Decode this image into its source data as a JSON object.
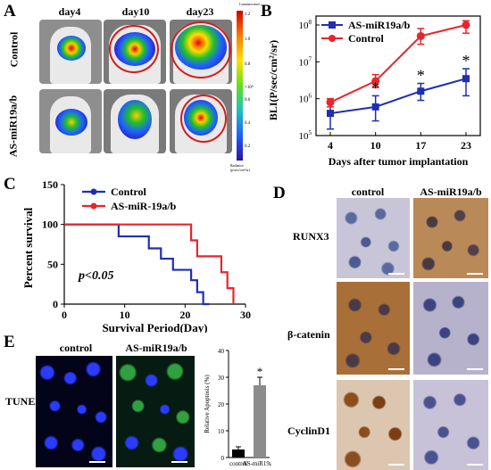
{
  "panels": {
    "a": "A",
    "b": "B",
    "c": "C",
    "d": "D",
    "e": "E"
  },
  "panel_a": {
    "columns": [
      "day4",
      "day10",
      "day23"
    ],
    "rows": [
      "Control",
      "AS-miR19a/b"
    ],
    "colorbar_top": "Luminescence",
    "colorbar_bottom": "Radiance (p/sec/cm²/sr)",
    "colorbar_unit": "×10⁸",
    "colorbar_ticks": [
      "1.2",
      "1.0",
      "0.8",
      "0.6",
      "0.4",
      "0.2"
    ]
  },
  "panel_d": {
    "columns": [
      "control",
      "AS-miR19a/b"
    ],
    "rows": [
      "RUNX3",
      "β-catenin",
      "CyclinD1"
    ]
  },
  "panel_e": {
    "columns": [
      "control",
      "AS-miR19a/b"
    ],
    "row": "TUNEL"
  },
  "colors": {
    "control": "#e8252a",
    "treated": "#1f2fb0",
    "bar_control": "#000000",
    "bar_treated": "#8c8c8c"
  },
  "chart_data": [
    {
      "type": "line",
      "panel": "B",
      "ylabel": "BLI(P/sec/cm²/sr)",
      "xlabel": "Days after tumor implantation",
      "y_scale": "log",
      "ylim": [
        100000,
        100000000
      ],
      "x_ticks": [
        "4",
        "10",
        "17",
        "23"
      ],
      "y_tick_bases": [
        "10",
        "10",
        "10",
        "10"
      ],
      "y_tick_exps": [
        "5",
        "6",
        "7",
        "8"
      ],
      "annotation": "*",
      "series": [
        {
          "name": "AS-miR19a/b",
          "x": [
            4,
            10,
            17,
            23
          ],
          "y": [
            400000,
            600000,
            1600000,
            3500000
          ],
          "err_low": [
            150000,
            250000,
            900000,
            1200000
          ],
          "err_high": [
            1000000,
            1200000,
            2600000,
            6500000
          ]
        },
        {
          "name": "Control",
          "x": [
            4,
            10,
            17,
            23
          ],
          "y": [
            800000,
            3000000,
            50000000,
            100000000
          ],
          "err_low": [
            600000,
            2000000,
            30000000,
            60000000
          ],
          "err_high": [
            1000000,
            4500000,
            80000000,
            160000000
          ]
        }
      ],
      "legend": "top-left"
    },
    {
      "type": "line",
      "panel": "C",
      "ylabel": "Percent survival",
      "xlabel": "Survival Period(Day)",
      "xlim": [
        0,
        30
      ],
      "ylim": [
        0,
        150
      ],
      "x_ticks": [
        "0",
        "10",
        "20",
        "30"
      ],
      "y_ticks": [
        "0",
        "50",
        "100",
        "150"
      ],
      "annotation": "p<0.05",
      "series": [
        {
          "name": "Control",
          "x": [
            0,
            9,
            9,
            14,
            14,
            16,
            16,
            18,
            18,
            21,
            21,
            22,
            22,
            23,
            23,
            24,
            24
          ],
          "y": [
            100,
            100,
            85,
            85,
            70,
            70,
            57,
            57,
            43,
            43,
            30,
            30,
            15,
            15,
            0,
            0,
            0
          ]
        },
        {
          "name": "AS-miR-19a/b",
          "x": [
            0,
            21,
            21,
            22,
            22,
            26,
            26,
            27,
            27,
            28,
            28
          ],
          "y": [
            100,
            100,
            80,
            80,
            60,
            60,
            40,
            40,
            20,
            20,
            0
          ]
        }
      ],
      "legend": "top-left"
    },
    {
      "type": "bar",
      "panel": "E",
      "ylabel": "Relative Apoptosis (%)",
      "categories": [
        "control",
        "AS-miR19a/b"
      ],
      "values": [
        3,
        27
      ],
      "errors": [
        1,
        3
      ],
      "ylim": [
        0,
        40
      ],
      "y_ticks": [
        "0",
        "10",
        "20",
        "30",
        "40"
      ],
      "annotation": "*"
    }
  ]
}
